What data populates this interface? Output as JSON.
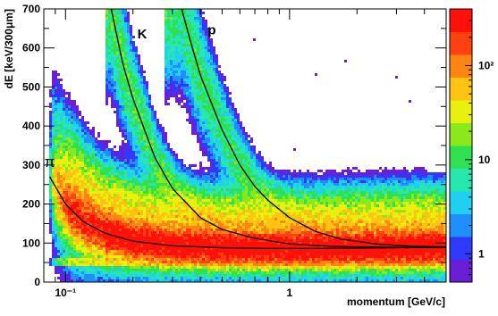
{
  "chart_data": {
    "type": "heatmap",
    "xlabel": "momentum [GeV/c]",
    "ylabel": "dE [keV/300μm]",
    "x_scale": "log",
    "xlim": [
      0.08,
      5
    ],
    "ylim": [
      0,
      700
    ],
    "x_ticks": [
      {
        "value": 0.1,
        "label": "10⁻¹"
      },
      {
        "value": 1,
        "label": "1"
      }
    ],
    "y_ticks": [
      {
        "value": 0,
        "label": "0"
      },
      {
        "value": 100,
        "label": "100"
      },
      {
        "value": 200,
        "label": "200"
      },
      {
        "value": 300,
        "label": "300"
      },
      {
        "value": 400,
        "label": "400"
      },
      {
        "value": 500,
        "label": "500"
      },
      {
        "value": 600,
        "label": "600"
      },
      {
        "value": 700,
        "label": "700"
      }
    ],
    "colorbar": {
      "scale": "log",
      "range": [
        0.5,
        400
      ],
      "tick_labels": [
        {
          "value": 1,
          "label": "1"
        },
        {
          "value": 10,
          "label": "10"
        },
        {
          "value": 100,
          "label": "10²"
        }
      ],
      "palette": [
        "#6a1fd6",
        "#2e3bff",
        "#1f8fff",
        "#1fd0f0",
        "#27e6b0",
        "#2fe04f",
        "#8be81a",
        "#e8f00e",
        "#ffc412",
        "#ff8412",
        "#ff4010",
        "#ff1008"
      ]
    },
    "bands": [
      {
        "name": "π",
        "points": [
          [
            0.085,
            270
          ],
          [
            0.1,
            200
          ],
          [
            0.12,
            155
          ],
          [
            0.15,
            125
          ],
          [
            0.2,
            105
          ],
          [
            0.3,
            93
          ],
          [
            0.5,
            88
          ],
          [
            0.8,
            86
          ],
          [
            1.2,
            86
          ],
          [
            2,
            87
          ],
          [
            3,
            88
          ],
          [
            5,
            89
          ]
        ]
      },
      {
        "name": "K",
        "points": [
          [
            0.16,
            700
          ],
          [
            0.18,
            560
          ],
          [
            0.2,
            470
          ],
          [
            0.25,
            320
          ],
          [
            0.3,
            240
          ],
          [
            0.4,
            165
          ],
          [
            0.5,
            135
          ],
          [
            0.7,
            112
          ],
          [
            1,
            98
          ],
          [
            1.5,
            92
          ],
          [
            2,
            90
          ],
          [
            3,
            89
          ],
          [
            5,
            89
          ]
        ]
      },
      {
        "name": "p",
        "points": [
          [
            0.33,
            700
          ],
          [
            0.36,
            620
          ],
          [
            0.4,
            530
          ],
          [
            0.5,
            390
          ],
          [
            0.6,
            300
          ],
          [
            0.7,
            245
          ],
          [
            0.8,
            210
          ],
          [
            1,
            165
          ],
          [
            1.3,
            130
          ],
          [
            1.7,
            110
          ],
          [
            2.5,
            97
          ],
          [
            3.5,
            92
          ],
          [
            5,
            90
          ]
        ]
      }
    ]
  }
}
